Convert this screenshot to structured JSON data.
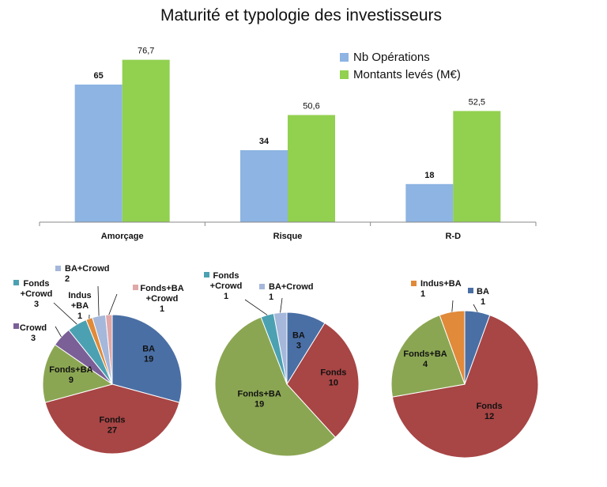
{
  "title": "Maturité et typologie des investisseurs",
  "colors": {
    "nb_operations": "#8DB4E2",
    "montants": "#92D050",
    "BA": "#4A6FA5",
    "Fonds": "#A84545",
    "Fonds+BA": "#8BA653",
    "Crowd": "#7B5F97",
    "Fonds+Crowd": "#4BA1B1",
    "Indus+BA": "#E08A3A",
    "BA+Crowd": "#A5B7DA",
    "Fonds+BA+Crowd": "#E0A8A8"
  },
  "chart_data": [
    {
      "type": "bar",
      "categories": [
        "Amorçage",
        "Risque",
        "R-D"
      ],
      "series": [
        {
          "name": "Nb Opérations",
          "values": [
            65,
            34,
            18
          ],
          "labels": [
            "65",
            "34",
            "18"
          ]
        },
        {
          "name": "Montants levés (M€)",
          "values": [
            76.7,
            50.6,
            52.5
          ],
          "labels": [
            "76,7",
            "50,6",
            "52,5"
          ]
        }
      ],
      "ylim": [
        0,
        90
      ],
      "legend": "top-right",
      "grid": false
    },
    {
      "type": "pie",
      "slices": [
        {
          "category": "BA",
          "value": 19
        },
        {
          "category": "Fonds",
          "value": 27
        },
        {
          "category": "Fonds+BA",
          "value": 9
        },
        {
          "category": "Crowd",
          "value": 3
        },
        {
          "category": "Fonds+Crowd",
          "value": 3
        },
        {
          "category": "Indus+BA",
          "value": 1
        },
        {
          "category": "BA+Crowd",
          "value": 2
        },
        {
          "category": "Fonds+BA+Crowd",
          "value": 1
        }
      ]
    },
    {
      "type": "pie",
      "slices": [
        {
          "category": "BA",
          "value": 3
        },
        {
          "category": "Fonds",
          "value": 10
        },
        {
          "category": "Fonds+BA",
          "value": 19
        },
        {
          "category": "Fonds+Crowd",
          "value": 1
        },
        {
          "category": "BA+Crowd",
          "value": 1
        }
      ]
    },
    {
      "type": "pie",
      "slices": [
        {
          "category": "BA",
          "value": 1
        },
        {
          "category": "Fonds",
          "value": 12
        },
        {
          "category": "Fonds+BA",
          "value": 4
        },
        {
          "category": "Indus+BA",
          "value": 1
        }
      ]
    }
  ]
}
